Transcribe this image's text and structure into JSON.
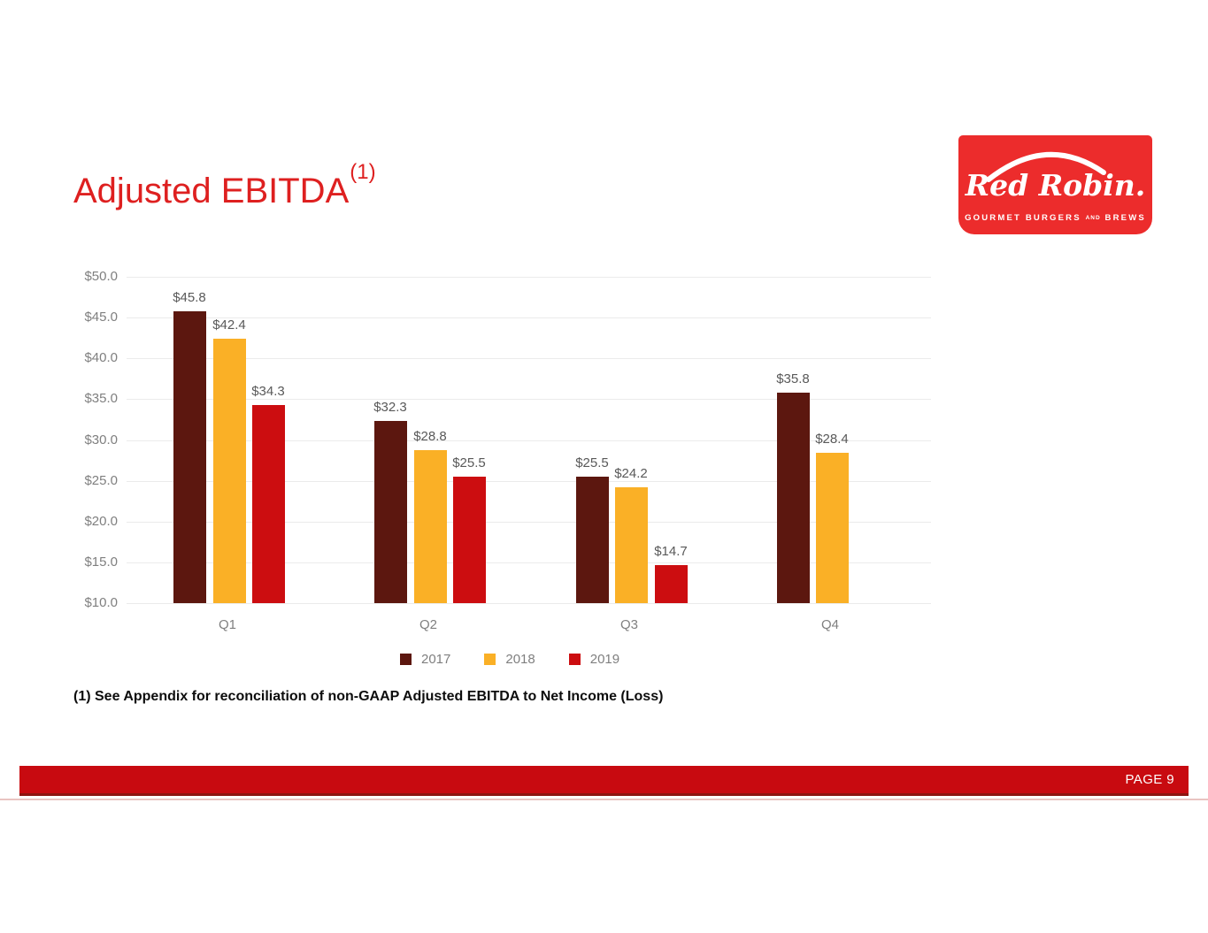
{
  "slide": {
    "title": {
      "text": "Adjusted EBITDA",
      "superscript": "(1)",
      "color": "#de2020"
    },
    "logo": {
      "brand": "Red Robin.",
      "tagline_left": "GOURMET BURGERS",
      "tagline_and": "AND",
      "tagline_right": "BREWS",
      "background": "#ec2c2c"
    },
    "footnote": "(1) See Appendix for reconciliation of non-GAAP Adjusted EBITDA to Net Income (Loss)",
    "footer": {
      "page_label": "PAGE 9",
      "bar_color": "#c80a10"
    }
  },
  "chart_data": {
    "type": "bar",
    "title": "",
    "xlabel": "",
    "ylabel": "",
    "categories": [
      "Q1",
      "Q2",
      "Q3",
      "Q4"
    ],
    "series": [
      {
        "name": "2017",
        "color": "#5c170f",
        "values": [
          45.8,
          32.3,
          25.5,
          35.8
        ]
      },
      {
        "name": "2018",
        "color": "#fab026",
        "values": [
          42.4,
          28.8,
          24.2,
          28.4
        ]
      },
      {
        "name": "2019",
        "color": "#cc0d10",
        "values": [
          34.3,
          25.5,
          14.7,
          null
        ]
      }
    ],
    "value_prefix": "$",
    "value_decimals": 1,
    "y_ticks": [
      50,
      45,
      40,
      35,
      30,
      25,
      20,
      15,
      10
    ],
    "y_tick_labels": [
      "$50.0",
      "$45.0",
      "$40.0",
      "$35.0",
      "$30.0",
      "$25.0",
      "$20.0",
      "$15.0",
      "$10.0"
    ],
    "ylim": [
      10,
      50
    ],
    "grid": true,
    "legend_position": "bottom"
  }
}
